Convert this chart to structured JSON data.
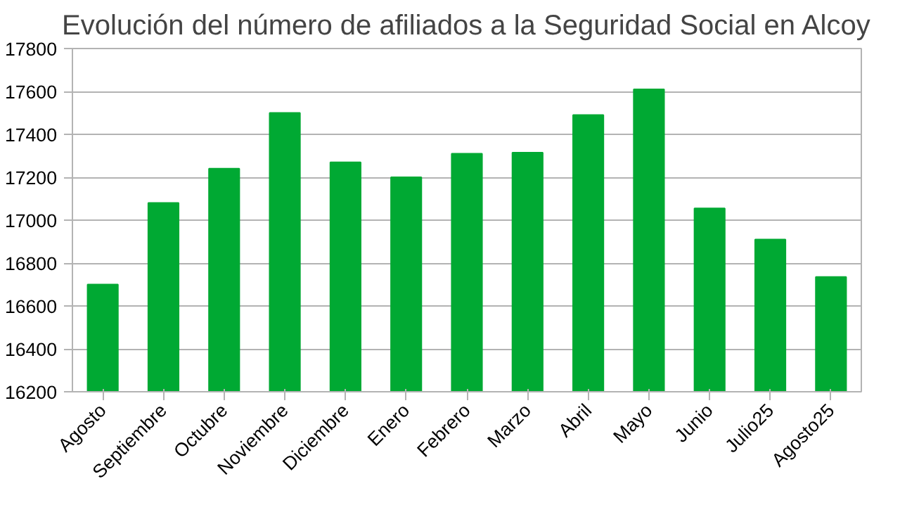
{
  "chart_data": {
    "type": "bar",
    "title": "Evolución del número de afiliados a la Seguridad Social en Alcoy",
    "categories": [
      "Agosto",
      "Septiembre",
      "Octubre",
      "Noviembre",
      "Diciembre",
      "Enero",
      "Febrero",
      "Marzo",
      "Abril",
      "Mayo",
      "Junio",
      "Julio25",
      "Agosto25"
    ],
    "values": [
      16700,
      17080,
      17240,
      17500,
      17270,
      17200,
      17310,
      17315,
      17490,
      17610,
      17055,
      16910,
      16735
    ],
    "color": "#00a933",
    "ylim": [
      16200,
      17800
    ],
    "yticks": [
      16200,
      16400,
      16600,
      16800,
      17000,
      17200,
      17400,
      17600,
      17800
    ],
    "grid": "y"
  }
}
